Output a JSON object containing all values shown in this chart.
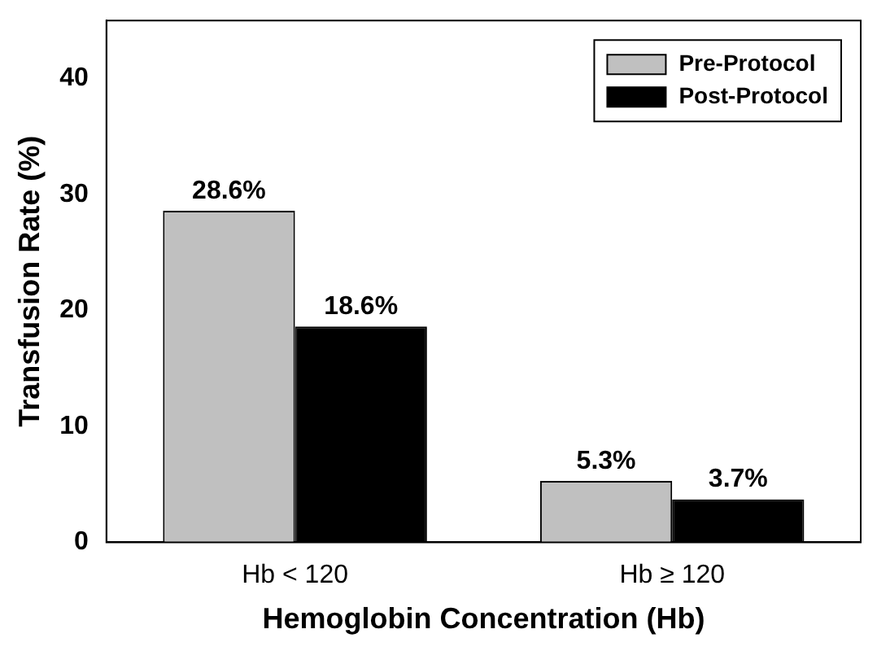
{
  "chart_data": {
    "type": "bar",
    "xlabel": "Hemoglobin Concentration (Hb)",
    "ylabel": "Transfusion Rate (%)",
    "categories": [
      "Hb < 120",
      "Hb ≥ 120"
    ],
    "series": [
      {
        "name": "Pre-Protocol",
        "color": "#c0c0c0",
        "values": [
          28.6,
          5.3
        ],
        "value_labels": [
          "28.6%",
          "5.3%"
        ]
      },
      {
        "name": "Post-Protocol",
        "color": "#000000",
        "values": [
          18.6,
          3.7
        ],
        "value_labels": [
          "18.6%",
          "3.7%"
        ]
      }
    ],
    "ylim": [
      0,
      45
    ],
    "yticks": [
      0,
      10,
      20,
      30,
      40
    ],
    "grid": false,
    "legend": "top right"
  }
}
